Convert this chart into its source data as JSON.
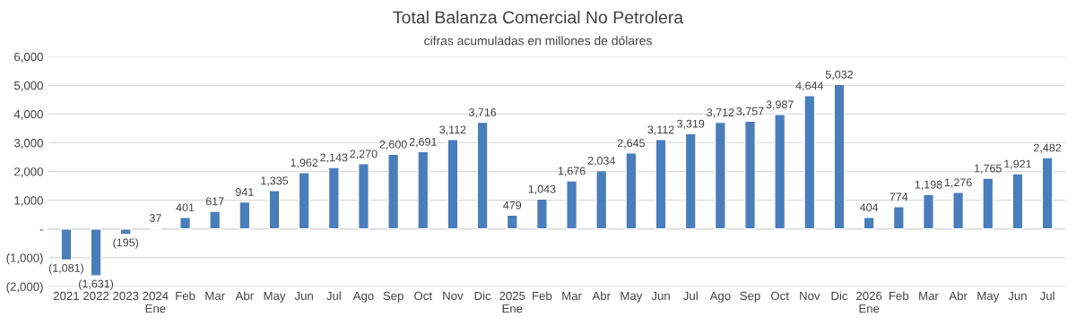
{
  "chart_data": {
    "type": "bar",
    "title": "Total Balanza Comercial No Petrolera",
    "subtitle": "cifras acumuladas en millones de dólares",
    "categories": [
      "2021",
      "2022",
      "2023",
      "2024\nEne",
      "Feb",
      "Mar",
      "Abr",
      "May",
      "Jun",
      "Jul",
      "Ago",
      "Sep",
      "Oct",
      "Nov",
      "Dic",
      "2025\nEne",
      "Feb",
      "Mar",
      "Abr",
      "May",
      "Jun",
      "Jul",
      "Ago",
      "Sep",
      "Oct",
      "Nov",
      "Dic",
      "2026\nEne",
      "Feb",
      "Mar",
      "Abr",
      "May",
      "Jun",
      "Jul"
    ],
    "values": [
      -1081,
      -1631,
      -195,
      37,
      401,
      617,
      941,
      1335,
      1962,
      2143,
      2270,
      2600,
      2691,
      3112,
      3716,
      479,
      1043,
      1676,
      2034,
      2645,
      3112,
      3319,
      3712,
      3757,
      3987,
      4644,
      5032,
      404,
      774,
      1198,
      1276,
      1765,
      1921,
      2482
    ],
    "value_labels": [
      "(1,081)",
      "(1,631)",
      "(195)",
      "37",
      "401",
      "617",
      "941",
      "1,335",
      "1,962",
      "2,143",
      "2,270",
      "2,600",
      "2,691",
      "3,112",
      "3,716",
      "479",
      "1,043",
      "1,676",
      "2,034",
      "2,645",
      "3,112",
      "3,319",
      "3,712",
      "3,757",
      "3,987",
      "4,644",
      "5,032",
      "404",
      "774",
      "1,198",
      "1,276",
      "1,765",
      "1,921",
      "2,482"
    ],
    "color": "#4a7ebb",
    "ylim": [
      -2000,
      6000
    ],
    "yticks": [
      {
        "value": -2000,
        "label": "(2,000)"
      },
      {
        "value": -1000,
        "label": "(1,000)"
      },
      {
        "value": 0,
        "label": "-"
      },
      {
        "value": 1000,
        "label": "1,000"
      },
      {
        "value": 2000,
        "label": "2,000"
      },
      {
        "value": 3000,
        "label": "3,000"
      },
      {
        "value": 4000,
        "label": "4,000"
      },
      {
        "value": 5000,
        "label": "5,000"
      },
      {
        "value": 6000,
        "label": "6,000"
      }
    ],
    "grid": "y"
  }
}
